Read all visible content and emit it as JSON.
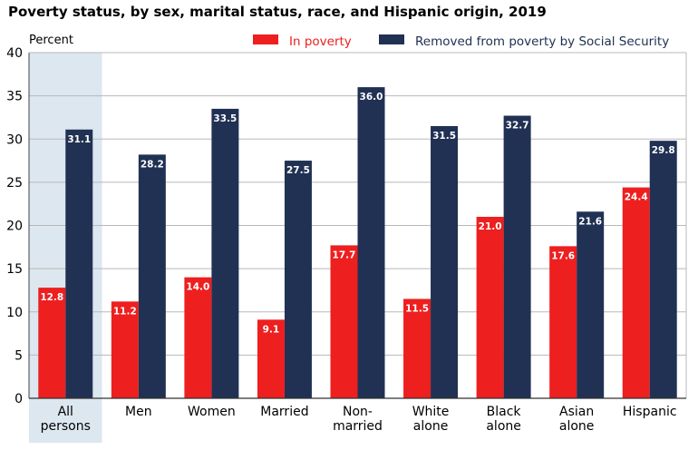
{
  "chart_data": {
    "type": "bar",
    "title": "Poverty status, by sex, marital status, race, and Hispanic origin, 2019",
    "ylabel": "Percent",
    "xlabel": "",
    "ylim": [
      0,
      40
    ],
    "yticks": [
      0,
      5,
      10,
      15,
      20,
      25,
      30,
      35,
      40
    ],
    "grid": true,
    "legend_position": "top-right",
    "highlighted_category": "All persons",
    "categories": [
      [
        "All",
        "persons"
      ],
      [
        "Men"
      ],
      [
        "Women"
      ],
      [
        "Married"
      ],
      [
        "Non-",
        "married"
      ],
      [
        "White",
        "alone"
      ],
      [
        "Black",
        "alone"
      ],
      [
        "Asian",
        "alone"
      ],
      [
        "Hispanic"
      ]
    ],
    "series": [
      {
        "name": "In poverty",
        "color": "#ee1f1f",
        "values": [
          12.8,
          11.2,
          14.0,
          9.1,
          17.7,
          11.5,
          21.0,
          17.6,
          24.4
        ]
      },
      {
        "name": "Removed from poverty by Social Security",
        "color": "#213153",
        "values": [
          31.1,
          28.2,
          33.5,
          27.5,
          36.0,
          31.5,
          32.7,
          21.6,
          29.8
        ]
      }
    ]
  }
}
